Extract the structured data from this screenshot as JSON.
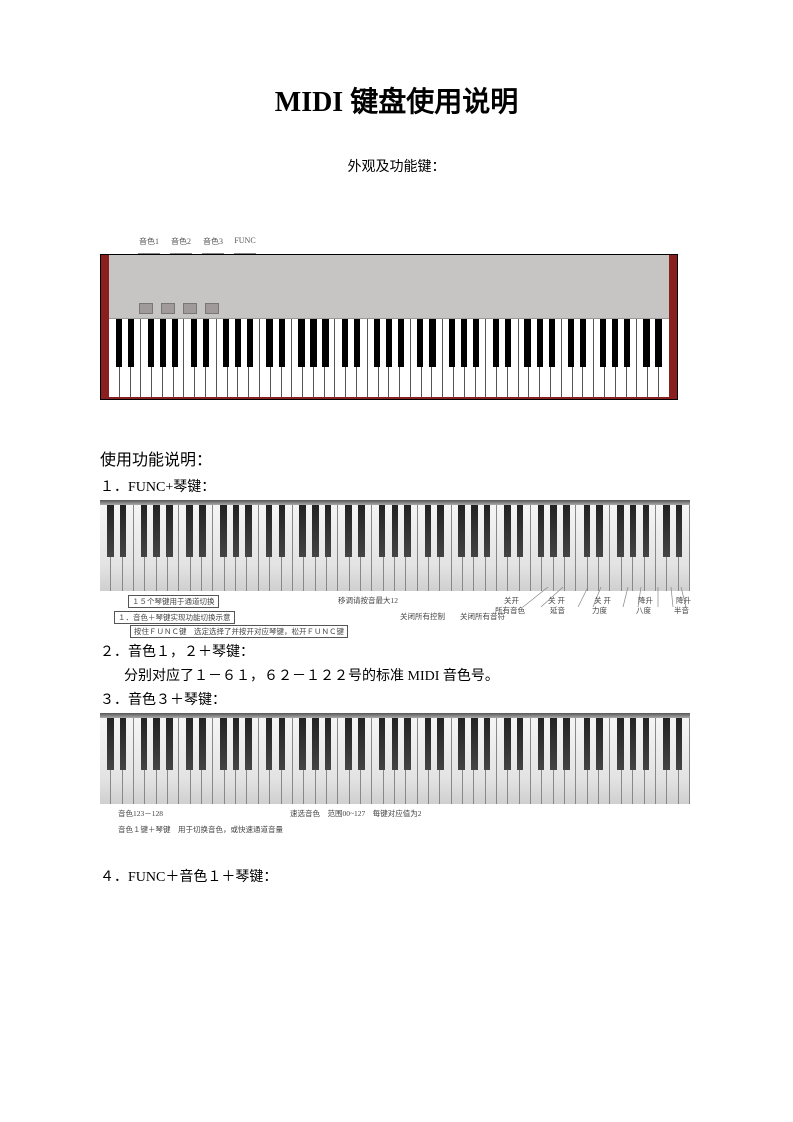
{
  "title": "MIDI 键盘使用说明",
  "subtitle": "外观及功能键：",
  "keyboard1": {
    "casing_color": "#8a1f1f",
    "top_panel_color": "#c7c4c4",
    "button_color": "#a09a9a",
    "button_labels": [
      "音色1",
      "音色2",
      "音色3",
      "FUNC"
    ],
    "button_count": 4,
    "white_keys": 52,
    "black_key_color": "#000000",
    "white_key_color": "#ffffff"
  },
  "section_heading": "使用功能说明：",
  "item1": "１．FUNC+琴键：",
  "keyboard2": {
    "white_keys": 52,
    "annot_left_box": "１５个琴键用于通道切换",
    "annot_mid": "移调请按音最大12",
    "annot_right_cluster": [
      "关开",
      "关 开",
      "关 开",
      "降升",
      "降升"
    ],
    "annot_right_labels": [
      "所有音色",
      "延音",
      "力度",
      "八度",
      "半音"
    ],
    "annot_bottom_line1": "１．音色＋琴键实现功能切换示意",
    "annot_bottom_line2": "按住ＦＵＮＣ键　选定选择了并按开对应琴键，松开ＦＵＮＣ键",
    "annot_extra": "关闭所有控制　　关闭所有音符"
  },
  "item2": "２．音色１，２＋琴键：",
  "item2b": "分别对应了１－６１，６２－１２２号的标准 MIDI 音色号。",
  "item3": "３．音色３＋琴键：",
  "keyboard3": {
    "white_keys": 52,
    "annot_left": "音色123－128",
    "annot_mid": "速选音色　范围00~127　每键对应值为2",
    "annot_bottom": "音色１键＋琴键　用于切换音色，或快速通道音量"
  },
  "item4": "４．FUNC＋音色１＋琴键："
}
